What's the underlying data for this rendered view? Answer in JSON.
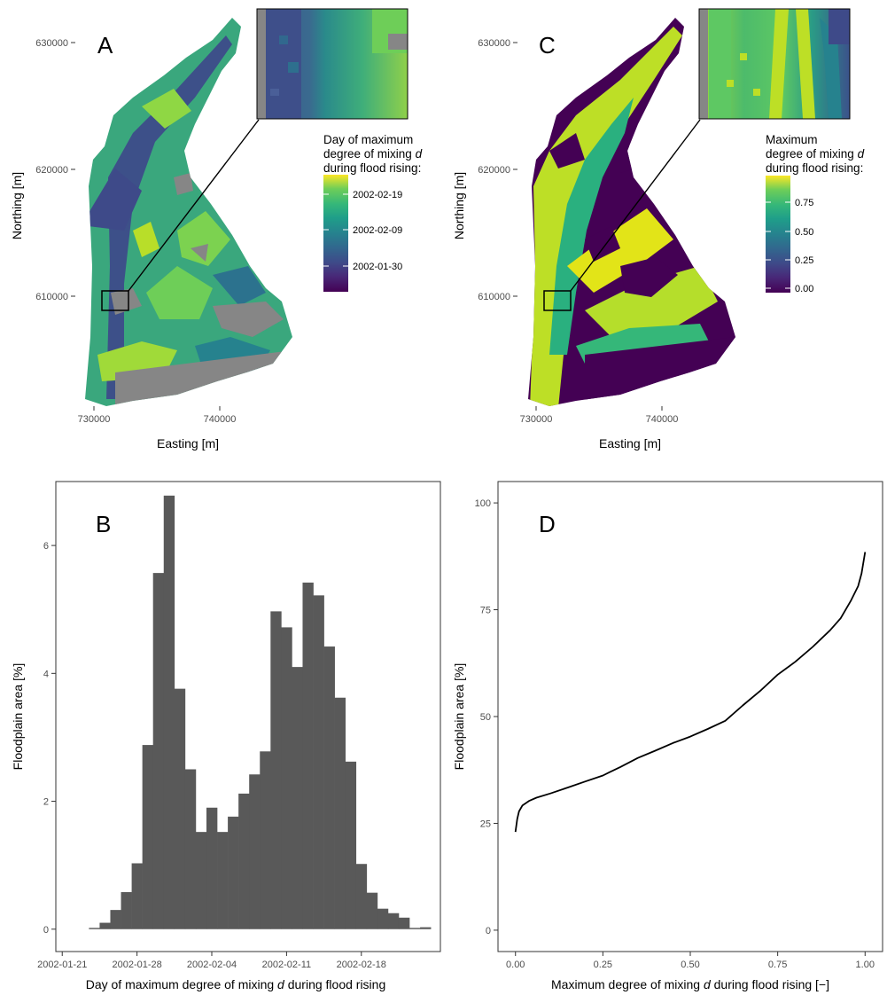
{
  "panels": {
    "A": {
      "label": "A",
      "xlabel": "Easting [m]",
      "ylabel": "Northing [m]",
      "xticks": [
        "730000",
        "740000"
      ],
      "yticks": [
        "630000",
        "620000",
        "610000"
      ],
      "legend_title": [
        "Day of maximum",
        "degree of mixing",
        "during flood rising:"
      ],
      "legend_title_var": "d",
      "legend_ticks": [
        "2002-02-19",
        "2002-02-09",
        "2002-01-30"
      ],
      "colormap": "viridis"
    },
    "C": {
      "label": "C",
      "xlabel": "Easting [m]",
      "ylabel": "Northing [m]",
      "xticks": [
        "730000",
        "740000"
      ],
      "yticks": [
        "630000",
        "620000",
        "610000"
      ],
      "legend_title": [
        "Maximum",
        "degree of mixing",
        "during flood rising:"
      ],
      "legend_title_var": "d",
      "legend_ticks": [
        "0.75",
        "0.50",
        "0.25",
        "0.00"
      ],
      "colormap": "viridis"
    },
    "B": {
      "label": "B",
      "xlabel_pre": "Day of maximum degree of mixing ",
      "xlabel_var": "d",
      "xlabel_post": " during flood rising",
      "ylabel": "Floodplain area [%]"
    },
    "D": {
      "label": "D",
      "xlabel_pre": "Maximum degree of mixing ",
      "xlabel_var": "d",
      "xlabel_post": " during flood rising [−]",
      "ylabel": "Floodplain area [%]"
    }
  },
  "chart_data": [
    {
      "panel": "B",
      "type": "bar",
      "xlabel": "Day of maximum degree of mixing d during flood rising",
      "ylabel": "Floodplain area [%]",
      "x_tick_labels": [
        "2002-01-21",
        "2002-01-28",
        "2002-02-04",
        "2002-02-11",
        "2002-02-18"
      ],
      "x_tick_days": [
        0,
        7,
        14,
        21,
        28
      ],
      "xlim_days": [
        -0.6,
        35.4
      ],
      "ylim": [
        -0.35,
        7.0
      ],
      "y_ticks": [
        0,
        2,
        4,
        6
      ],
      "bin_start_days": [
        2.5,
        3.5,
        4.5,
        5.5,
        6.5,
        7.5,
        8.5,
        9.5,
        10.5,
        11.5,
        12.5,
        13.5,
        14.5,
        15.5,
        16.5,
        17.5,
        18.5,
        19.5,
        20.5,
        21.5,
        22.5,
        23.5,
        24.5,
        25.5,
        26.5,
        27.5,
        28.5,
        29.5,
        30.5,
        31.5,
        32.5,
        33.5
      ],
      "bin_width_days": 1,
      "values": [
        0.02,
        0.1,
        0.3,
        0.58,
        1.03,
        2.88,
        5.57,
        6.78,
        3.76,
        2.5,
        1.52,
        1.9,
        1.52,
        1.76,
        2.12,
        2.42,
        2.78,
        4.97,
        4.72,
        4.1,
        5.42,
        5.22,
        4.42,
        3.62,
        2.62,
        1.02,
        0.57,
        0.32,
        0.25,
        0.18,
        0.02,
        0.03
      ],
      "grid": false,
      "color": "#595959"
    },
    {
      "panel": "D",
      "type": "line",
      "xlabel": "Maximum degree of mixing d during flood rising [−]",
      "ylabel": "Floodplain area [%]",
      "xlim": [
        -0.05,
        1.05
      ],
      "ylim": [
        -5,
        105
      ],
      "x_ticks": [
        0.0,
        0.25,
        0.5,
        0.75,
        1.0
      ],
      "x_tick_labels": [
        "0.00",
        "0.25",
        "0.50",
        "0.75",
        "1.00"
      ],
      "y_ticks": [
        0,
        25,
        50,
        75,
        100
      ],
      "x": [
        0.0,
        0.005,
        0.01,
        0.02,
        0.04,
        0.06,
        0.1,
        0.15,
        0.2,
        0.25,
        0.27,
        0.3,
        0.35,
        0.4,
        0.45,
        0.5,
        0.55,
        0.6,
        0.65,
        0.7,
        0.75,
        0.8,
        0.85,
        0.9,
        0.93,
        0.96,
        0.98,
        0.99,
        1.0
      ],
      "y": [
        23.0,
        26.0,
        27.8,
        29.2,
        30.3,
        31.0,
        32.0,
        33.4,
        34.8,
        36.2,
        37.0,
        38.2,
        40.3,
        42.0,
        43.8,
        45.3,
        47.1,
        49.0,
        52.6,
        56.0,
        59.8,
        62.8,
        66.3,
        70.2,
        73.0,
        77.2,
        80.5,
        83.5,
        88.5
      ],
      "grid": false,
      "color": "#000000"
    }
  ]
}
